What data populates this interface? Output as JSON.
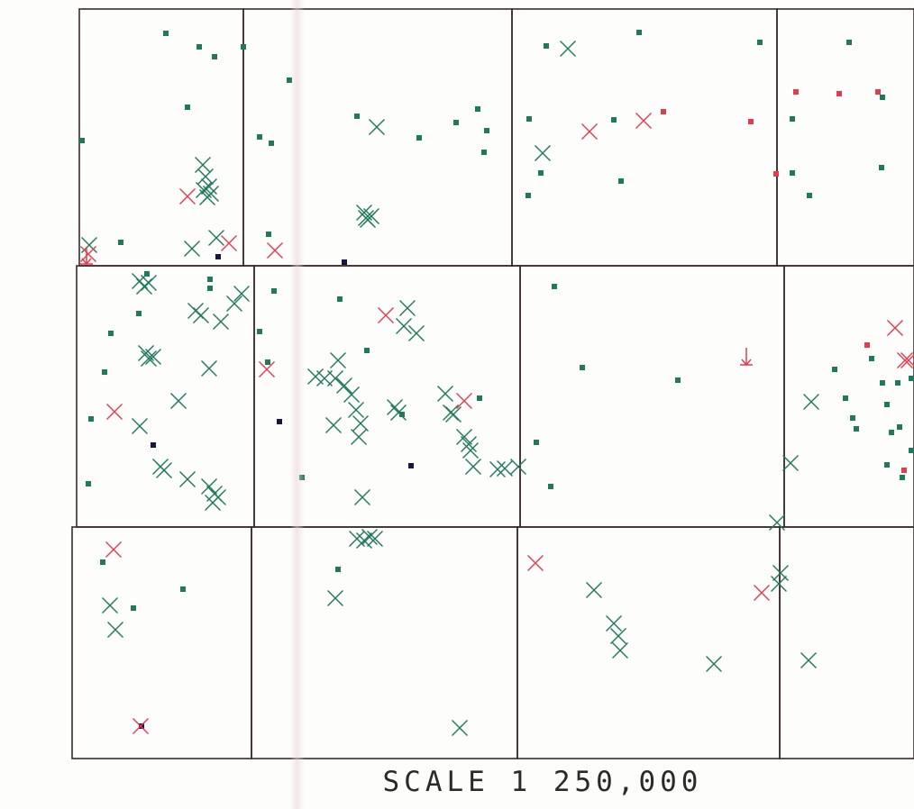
{
  "map": {
    "scale_label": "SCALE 1 250,000",
    "colors": {
      "grid": "#3a2a2a",
      "green": "#1e7a5a",
      "red": "#e63a4e",
      "dark": "#1a1440"
    },
    "sheets": [
      {
        "name": "sheet-r1-c1"
      },
      {
        "name": "sheet-r1-c2"
      },
      {
        "name": "sheet-r1-c3"
      },
      {
        "name": "sheet-r1-c4"
      },
      {
        "name": "sheet-r2-c1"
      },
      {
        "name": "sheet-r2-c2"
      },
      {
        "name": "sheet-r2-c3"
      },
      {
        "name": "sheet-r2-c4"
      },
      {
        "name": "sheet-r3-c1"
      },
      {
        "name": "sheet-r3-c2"
      },
      {
        "name": "sheet-r3-c3"
      },
      {
        "name": "sheet-r3-c4"
      }
    ],
    "legend_symbols": [
      "green-cross",
      "red-cross",
      "green-square",
      "red-square",
      "dark-square",
      "red-arrow"
    ]
  }
}
